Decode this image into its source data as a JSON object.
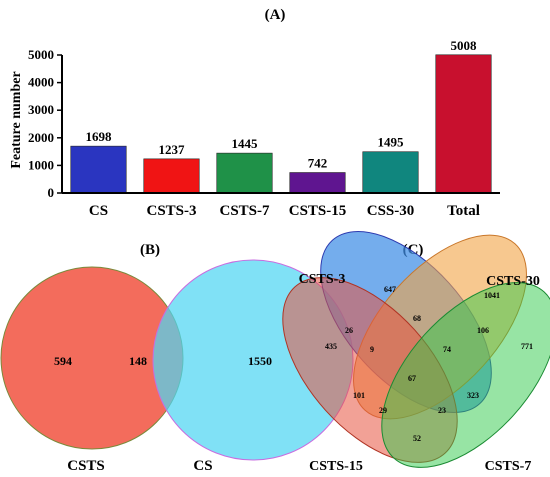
{
  "chart_data": [
    {
      "panel": "(A)",
      "type": "bar",
      "ylabel": "Feature number",
      "ylim": [
        0,
        5000
      ],
      "yticks": [
        0,
        1000,
        2000,
        3000,
        4000,
        5000
      ],
      "categories": [
        "CS",
        "CSTS-3",
        "CSTS-7",
        "CSTS-15",
        "CSS-30",
        "Total"
      ],
      "values": [
        1698,
        1237,
        1445,
        742,
        1495,
        5008
      ],
      "colors": [
        "#2a35c0",
        "#f01414",
        "#1f9148",
        "#5f1590",
        "#10867e",
        "#c8102e"
      ]
    },
    {
      "panel": "(B)",
      "type": "venn",
      "sets": [
        "CSTS",
        "CS"
      ],
      "colors": [
        "#f2604e",
        "#4fd6f2"
      ],
      "regions": [
        {
          "sets": [
            "CSTS"
          ],
          "value": 594
        },
        {
          "sets": [
            "CSTS",
            "CS"
          ],
          "value": 148
        },
        {
          "sets": [
            "CS"
          ],
          "value": 1550
        }
      ]
    },
    {
      "panel": "(C)",
      "type": "venn",
      "sets": [
        "CSTS-3",
        "CSTS-30",
        "CSTS-15",
        "CSTS-7"
      ],
      "colors": [
        "#3f8ee6",
        "#f2a445",
        "#e8533f",
        "#2fc94a"
      ],
      "regions": [
        {
          "sets": [
            "CSTS-3"
          ],
          "value": 647
        },
        {
          "sets": [
            "CSTS-30"
          ],
          "value": 1041
        },
        {
          "sets": [
            "CSTS-15"
          ],
          "value": 435
        },
        {
          "sets": [
            "CSTS-7"
          ],
          "value": 771
        },
        {
          "sets": [
            "CSTS-3",
            "CSTS-30"
          ],
          "value": 68
        },
        {
          "sets": [
            "CSTS-3",
            "CSTS-15"
          ],
          "value": 26
        },
        {
          "sets": [
            "CSTS-30",
            "CSTS-7"
          ],
          "value": 106
        },
        {
          "sets": [
            "CSTS-15",
            "CSTS-7"
          ],
          "value": 52
        },
        {
          "sets": [
            "CSTS-3",
            "CSTS-7"
          ],
          "value": 323
        },
        {
          "sets": [
            "CSTS-30",
            "CSTS-15"
          ],
          "value": 101
        },
        {
          "sets": [
            "CSTS-3",
            "CSTS-30",
            "CSTS-15"
          ],
          "value": 9
        },
        {
          "sets": [
            "CSTS-3",
            "CSTS-30",
            "CSTS-7"
          ],
          "value": 74
        },
        {
          "sets": [
            "CSTS-3",
            "CSTS-15",
            "CSTS-7"
          ],
          "value": 23
        },
        {
          "sets": [
            "CSTS-30",
            "CSTS-15",
            "CSTS-7"
          ],
          "value": 29
        },
        {
          "sets": [
            "CSTS-3",
            "CSTS-30",
            "CSTS-15",
            "CSTS-7"
          ],
          "value": 67
        }
      ]
    }
  ]
}
